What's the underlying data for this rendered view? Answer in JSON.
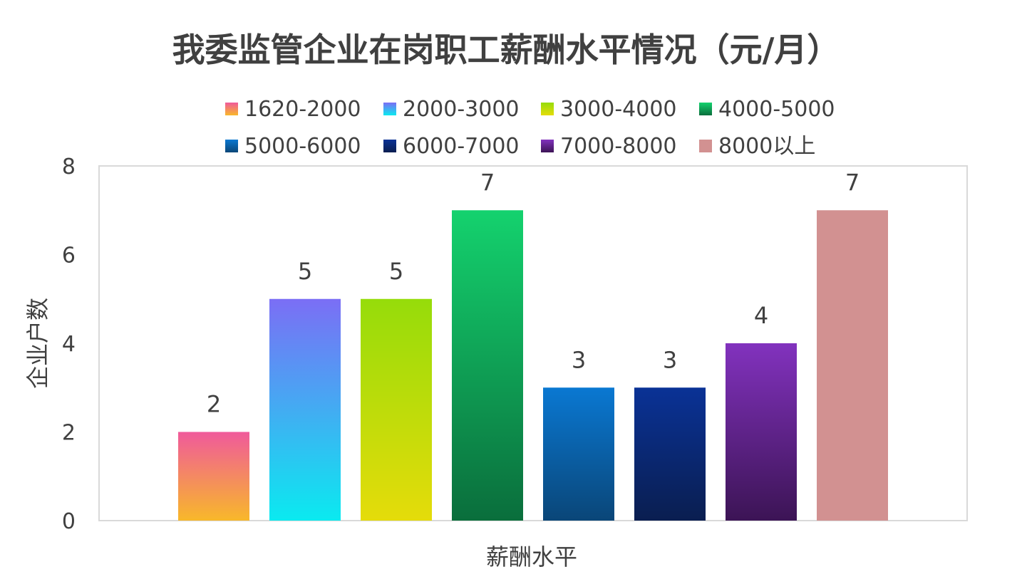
{
  "chart_data": {
    "type": "bar",
    "title": "我委监管企业在岗职工薪酬水平情况（元/月）",
    "xlabel": "薪酬水平",
    "ylabel": "企业户数",
    "ylim": [
      0,
      8
    ],
    "yticks": [
      0,
      2,
      4,
      6,
      8
    ],
    "grid": false,
    "legend_position": "top",
    "categories": [
      "1620-2000",
      "2000-3000",
      "3000-4000",
      "4000-5000",
      "5000-6000",
      "6000-7000",
      "7000-8000",
      "8000以上"
    ],
    "values": [
      2,
      5,
      5,
      7,
      3,
      3,
      4,
      7
    ],
    "colors": [
      {
        "top": "#f05a9b",
        "bottom": "#f8b82a"
      },
      {
        "top": "#7b6ef5",
        "bottom": "#0aeaf0"
      },
      {
        "top": "#96dc0a",
        "bottom": "#e5dc0a"
      },
      {
        "top": "#14d26e",
        "bottom": "#0a6e3c"
      },
      {
        "top": "#0a78d2",
        "bottom": "#0a4678"
      },
      {
        "top": "#0a3296",
        "bottom": "#0a1e50"
      },
      {
        "top": "#8232be",
        "bottom": "#3c1455"
      },
      {
        "top": "#d29191",
        "bottom": "#d29191"
      }
    ],
    "data_labels": [
      "2",
      "5",
      "5",
      "7",
      "3",
      "3",
      "4",
      "7"
    ]
  }
}
